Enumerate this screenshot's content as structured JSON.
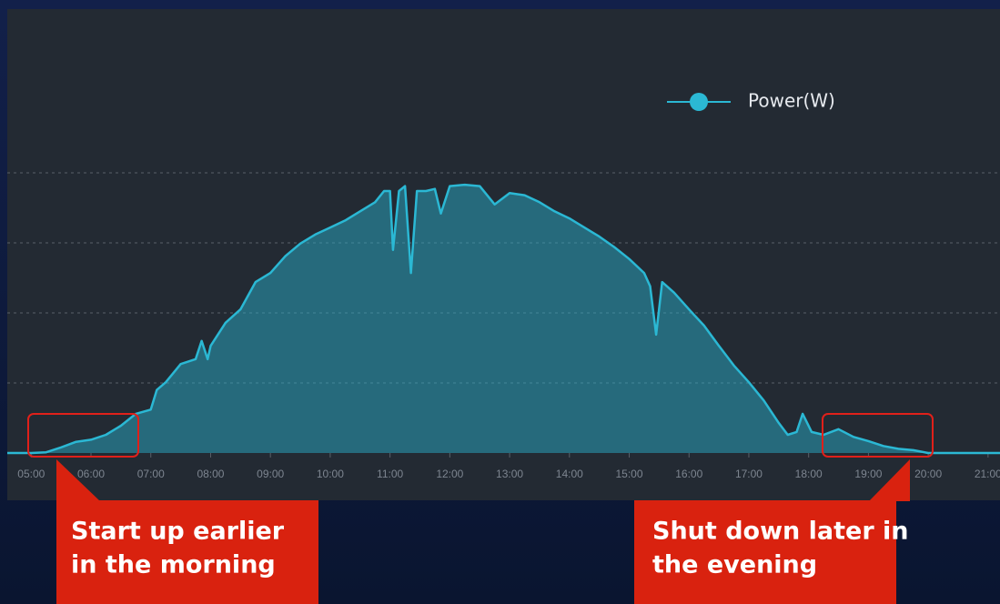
{
  "chart_data": {
    "type": "area",
    "xlim": [
      4.6,
      21.2
    ],
    "xticks": [
      {
        "value": 5,
        "label": "05:00"
      },
      {
        "value": 6,
        "label": "06:00"
      },
      {
        "value": 7,
        "label": "07:00"
      },
      {
        "value": 8,
        "label": "08:00"
      },
      {
        "value": 9,
        "label": "09:00"
      },
      {
        "value": 10,
        "label": "10:00"
      },
      {
        "value": 11,
        "label": "11:00"
      },
      {
        "value": 12,
        "label": "12:00"
      },
      {
        "value": 13,
        "label": "13:00"
      },
      {
        "value": 14,
        "label": "14:00"
      },
      {
        "value": 15,
        "label": "15:00"
      },
      {
        "value": 16,
        "label": "16:00"
      },
      {
        "value": 17,
        "label": "17:00"
      },
      {
        "value": 18,
        "label": "18:00"
      },
      {
        "value": 19,
        "label": "19:00"
      },
      {
        "value": 20,
        "label": "20:00"
      },
      {
        "value": 21,
        "label": "21:00"
      }
    ],
    "ylim": [
      0,
      5
    ],
    "yticks": [
      1,
      2,
      3,
      4
    ],
    "grid": true,
    "legend": "top-right",
    "x": [
      4.6,
      5.0,
      5.25,
      5.5,
      5.75,
      6.0,
      6.25,
      6.5,
      6.75,
      7.0,
      7.1,
      7.25,
      7.5,
      7.75,
      7.85,
      7.95,
      8.0,
      8.25,
      8.5,
      8.75,
      9.0,
      9.25,
      9.5,
      9.75,
      10.0,
      10.25,
      10.5,
      10.75,
      10.9,
      11.0,
      11.05,
      11.15,
      11.25,
      11.35,
      11.45,
      11.6,
      11.75,
      11.85,
      12.0,
      12.25,
      12.5,
      12.75,
      13.0,
      13.25,
      13.5,
      13.75,
      14.0,
      14.25,
      14.5,
      14.75,
      15.0,
      15.25,
      15.35,
      15.45,
      15.55,
      15.75,
      16.0,
      16.25,
      16.5,
      16.75,
      17.0,
      17.25,
      17.5,
      17.65,
      17.8,
      17.9,
      18.05,
      18.25,
      18.5,
      18.75,
      19.0,
      19.25,
      19.5,
      19.75,
      20.0,
      20.5,
      21.0,
      21.2
    ],
    "series": [
      {
        "name": "Power(W)",
        "color": "#2bb8d4",
        "values": [
          0,
          0,
          0.01,
          0.08,
          0.16,
          0.19,
          0.26,
          0.39,
          0.56,
          0.62,
          0.9,
          1.01,
          1.27,
          1.34,
          1.6,
          1.34,
          1.53,
          1.86,
          2.05,
          2.44,
          2.57,
          2.81,
          2.99,
          3.12,
          3.22,
          3.32,
          3.45,
          3.58,
          3.74,
          3.74,
          2.9,
          3.74,
          3.81,
          2.57,
          3.74,
          3.74,
          3.77,
          3.42,
          3.81,
          3.83,
          3.81,
          3.55,
          3.71,
          3.68,
          3.58,
          3.45,
          3.35,
          3.22,
          3.09,
          2.94,
          2.77,
          2.57,
          2.38,
          1.69,
          2.44,
          2.29,
          2.05,
          1.82,
          1.53,
          1.25,
          1.01,
          0.75,
          0.43,
          0.26,
          0.3,
          0.56,
          0.3,
          0.26,
          0.34,
          0.23,
          0.17,
          0.1,
          0.06,
          0.04,
          0,
          0,
          0,
          0
        ]
      }
    ],
    "annotations": [
      {
        "lines": [
          "Start up earlier",
          "in the morning"
        ]
      },
      {
        "lines": [
          "Shut down later in",
          "the evening"
        ]
      }
    ]
  }
}
